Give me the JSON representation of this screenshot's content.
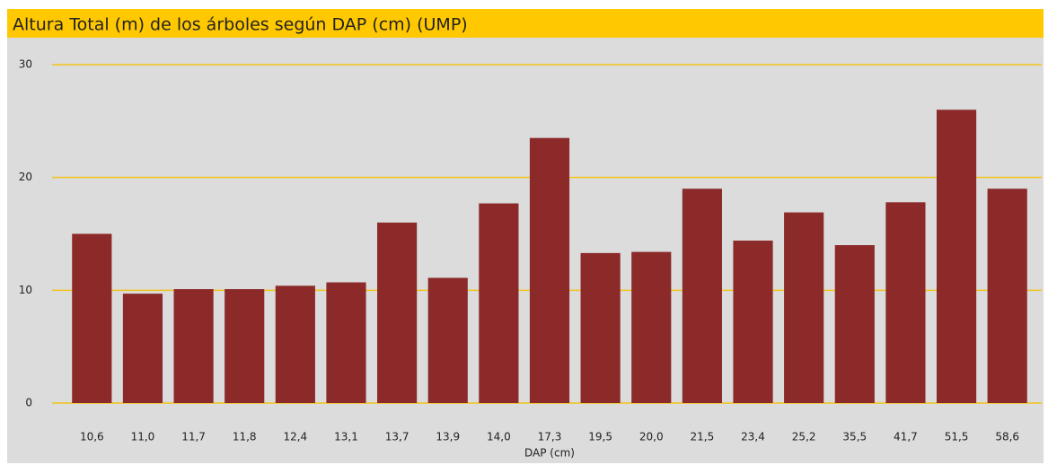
{
  "chart_data": {
    "type": "bar",
    "title": "Altura Total (m) de los árboles según DAP (cm) (UMP)",
    "x_label": "DAP (cm)",
    "categories": [
      "10,6",
      "11,0",
      "11,7",
      "11,8",
      "12,4",
      "13,1",
      "13,7",
      "13,9",
      "14,0",
      "17,3",
      "19,5",
      "20,0",
      "21,5",
      "23,4",
      "25,2",
      "35,5",
      "41,7",
      "51,5",
      "58,6"
    ],
    "values": [
      15.0,
      9.7,
      10.1,
      10.1,
      10.4,
      10.7,
      16.0,
      11.1,
      17.7,
      23.5,
      13.3,
      13.4,
      19.0,
      14.4,
      16.9,
      14.0,
      17.8,
      26.0,
      19.0
    ],
    "color": "#8c2a2a",
    "ylim": [
      0,
      30
    ],
    "yticks": [
      0,
      10,
      20,
      30
    ],
    "grid": true
  }
}
